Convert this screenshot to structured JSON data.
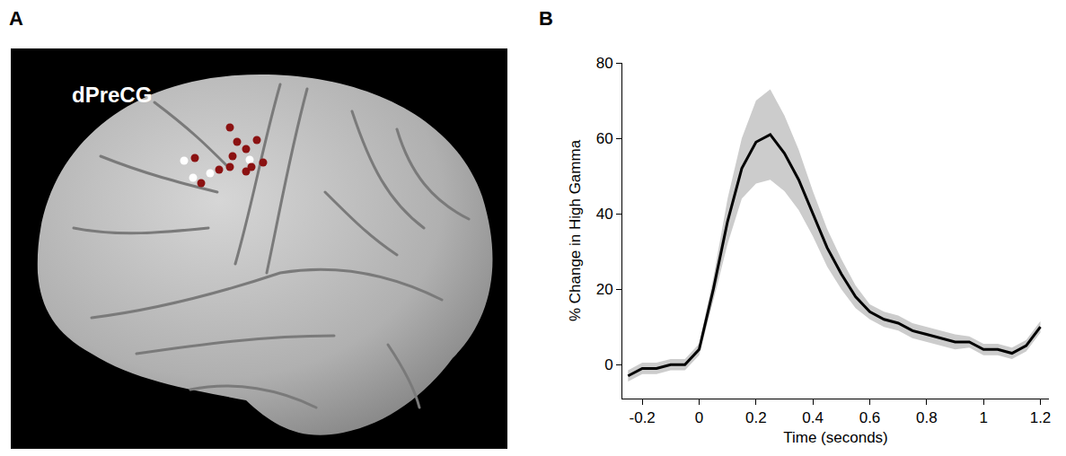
{
  "panel_letters": [
    "A",
    "B"
  ],
  "brain": {
    "label": "dPreCG"
  },
  "chart_data": {
    "type": "line",
    "x_label": "Time (seconds)",
    "y_label": "% Change in High Gamma",
    "x": [
      -0.25,
      -0.2,
      -0.15,
      -0.1,
      -0.05,
      0,
      0.05,
      0.1,
      0.15,
      0.2,
      0.25,
      0.3,
      0.35,
      0.4,
      0.45,
      0.5,
      0.55,
      0.6,
      0.65,
      0.7,
      0.75,
      0.8,
      0.85,
      0.9,
      0.95,
      1.0,
      1.05,
      1.1,
      1.15,
      1.2
    ],
    "values": [
      -3,
      -1,
      -1,
      0,
      0,
      4,
      20,
      38,
      52,
      59,
      61,
      56,
      49,
      40,
      31,
      24,
      18,
      14,
      12,
      11,
      9,
      8,
      7,
      6,
      6,
      4,
      4,
      3,
      5,
      10
    ],
    "error": [
      1.5,
      1.5,
      1.5,
      1.5,
      1.5,
      1.5,
      3,
      6,
      8,
      11,
      12,
      10,
      8,
      6,
      5,
      4,
      3,
      2,
      2,
      2,
      2,
      2,
      2,
      2,
      1.5,
      1.5,
      1.5,
      1.5,
      1.5,
      1.5
    ],
    "color": "#000000",
    "xlim": [
      -0.27,
      1.23
    ],
    "xticks": [
      -0.2,
      0,
      0.2,
      0.4,
      0.6,
      0.8,
      1,
      1.2
    ],
    "ylim": [
      -9,
      80
    ],
    "yticks": [
      0,
      20,
      40,
      60,
      80
    ],
    "grid": false
  }
}
